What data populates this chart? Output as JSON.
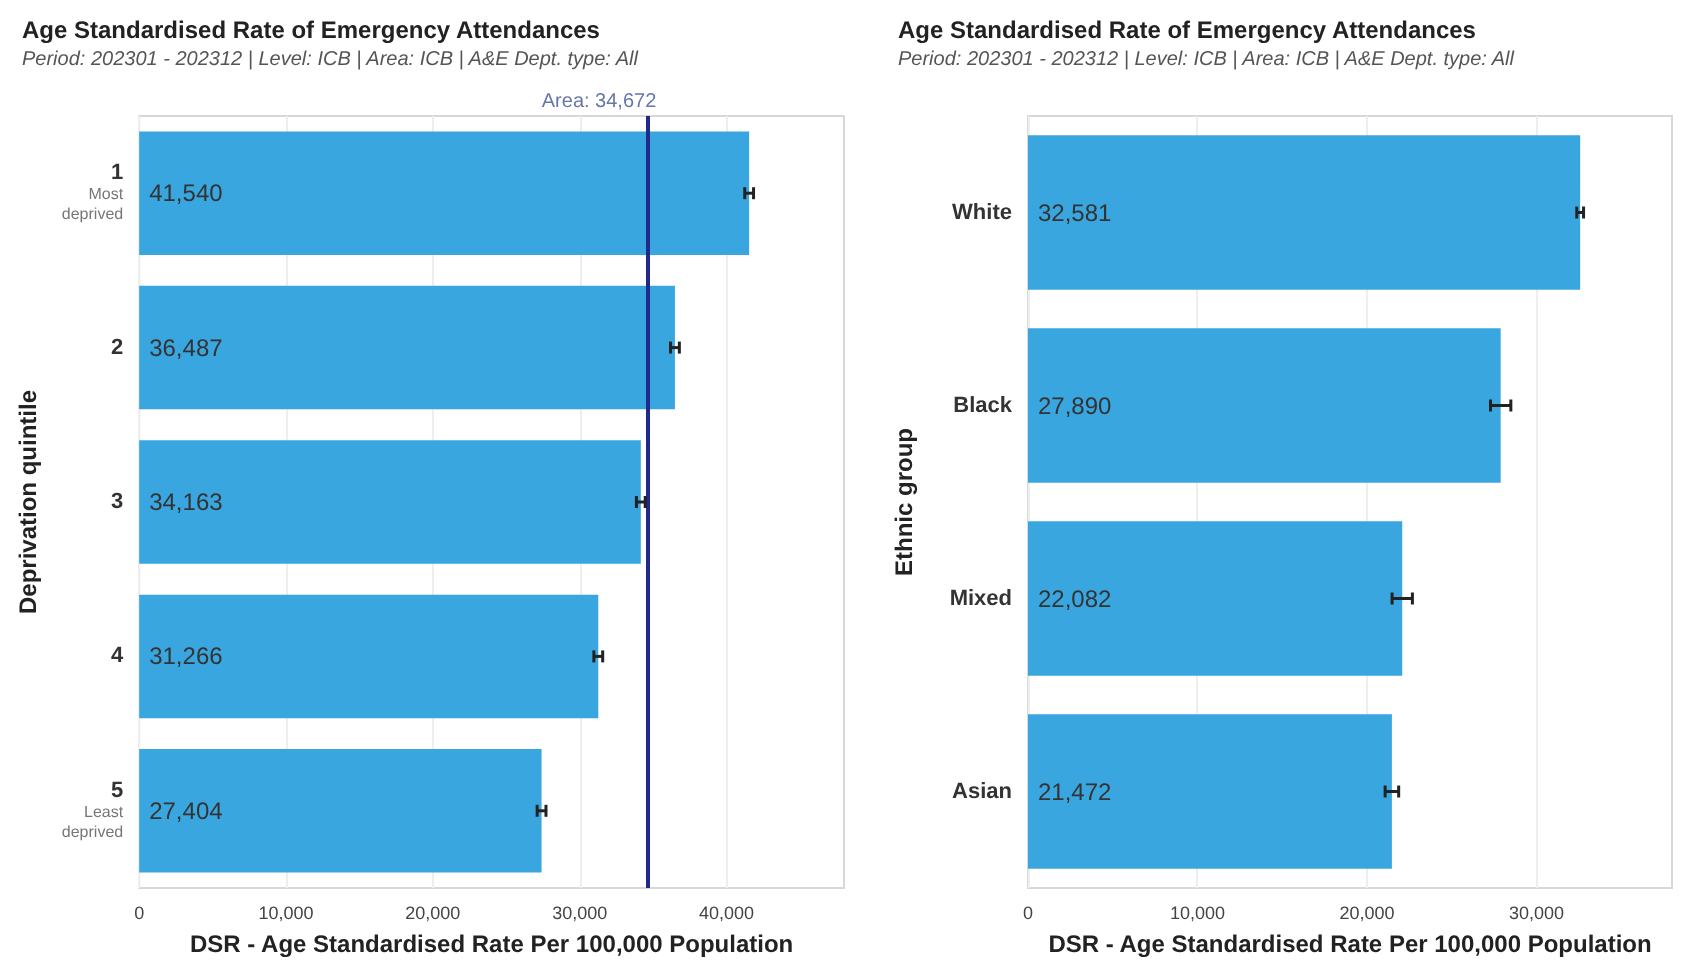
{
  "chart_data": [
    {
      "type": "bar",
      "orientation": "horizontal",
      "title": "Age Standardised Rate of Emergency Attendances",
      "subtitle": "Period: 202301 - 202312 | Level: ICB | Area: ICB | A&E Dept. type: All",
      "xlabel": "DSR - Age Standardised Rate Per 100,000 Population",
      "ylabel": "Deprivation quintile",
      "categories": [
        "1\nMost\ndeprived",
        "2",
        "3",
        "4",
        "5\nLeast\ndeprived"
      ],
      "values": [
        41540,
        36487,
        34163,
        31266,
        27404
      ],
      "value_labels": [
        "41,540",
        "36,487",
        "34,163",
        "31,266",
        "27,404"
      ],
      "errors": [
        300,
        300,
        300,
        300,
        300
      ],
      "color": "#3aa6df",
      "xlim": [
        0,
        48000
      ],
      "xticks": [
        {
          "value": 0,
          "label": "0"
        },
        {
          "value": 10000,
          "label": "10,000"
        },
        {
          "value": 20000,
          "label": "20,000"
        },
        {
          "value": 30000,
          "label": "30,000"
        },
        {
          "value": 40000,
          "label": "40,000"
        }
      ],
      "ref_lines": [
        {
          "axis": "x",
          "value": 34672,
          "label": "Area: 34,672",
          "color": "#1f2a8a"
        }
      ],
      "grid": "x"
    },
    {
      "type": "bar",
      "orientation": "horizontal",
      "title": "Age Standardised Rate of Emergency Attendances",
      "subtitle": "Period: 202301 - 202312 | Level: ICB | Area: ICB | A&E Dept. type: All",
      "xlabel": "DSR - Age Standardised Rate Per 100,000 Population",
      "ylabel": "Ethnic group",
      "categories": [
        "White",
        "Black",
        "Mixed",
        "Asian"
      ],
      "values": [
        32581,
        27890,
        22082,
        21472
      ],
      "value_labels": [
        "32,581",
        "27,890",
        "22,082",
        "21,472"
      ],
      "errors": [
        200,
        600,
        600,
        400
      ],
      "color": "#3aa6df",
      "xlim": [
        0,
        38000
      ],
      "xticks": [
        {
          "value": 0,
          "label": "0"
        },
        {
          "value": 10000,
          "label": "10,000"
        },
        {
          "value": 20000,
          "label": "20,000"
        },
        {
          "value": 30000,
          "label": "30,000"
        }
      ],
      "grid": "x"
    }
  ]
}
